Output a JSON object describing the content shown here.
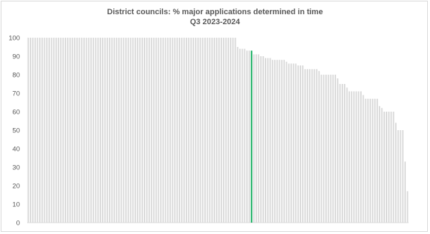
{
  "chart_data": {
    "type": "bar",
    "title": "District councils: % major applications determined in time",
    "subtitle": "Q3 2023-2024",
    "xlabel": "",
    "ylabel": "",
    "ylim": [
      0,
      100
    ],
    "yticks": [
      "0",
      "10",
      "20",
      "30",
      "40",
      "50",
      "60",
      "70",
      "80",
      "90",
      "100"
    ],
    "grid": false,
    "legend": "none",
    "bar_color": "#d9d9d9",
    "highlight_color": "#00a651",
    "highlight_index": 96,
    "values": [
      100,
      100,
      100,
      100,
      100,
      100,
      100,
      100,
      100,
      100,
      100,
      100,
      100,
      100,
      100,
      100,
      100,
      100,
      100,
      100,
      100,
      100,
      100,
      100,
      100,
      100,
      100,
      100,
      100,
      100,
      100,
      100,
      100,
      100,
      100,
      100,
      100,
      100,
      100,
      100,
      100,
      100,
      100,
      100,
      100,
      100,
      100,
      100,
      100,
      100,
      100,
      100,
      100,
      100,
      100,
      100,
      100,
      100,
      100,
      100,
      100,
      100,
      100,
      100,
      100,
      100,
      100,
      100,
      100,
      100,
      100,
      100,
      100,
      100,
      100,
      100,
      100,
      100,
      100,
      100,
      100,
      100,
      100,
      100,
      100,
      100,
      100,
      100,
      100,
      100,
      95,
      94,
      94,
      94,
      93,
      93,
      93,
      91,
      91,
      91,
      90,
      90,
      89,
      89,
      89,
      88,
      88,
      88,
      88,
      88,
      88,
      87,
      86,
      86,
      86,
      86,
      85,
      85,
      85,
      83,
      83,
      83,
      83,
      83,
      83,
      82,
      80,
      80,
      80,
      80,
      80,
      80,
      80,
      78,
      75,
      75,
      75,
      73,
      71,
      71,
      71,
      71,
      71,
      71,
      69,
      67,
      67,
      67,
      67,
      67,
      67,
      63,
      62,
      60,
      60,
      60,
      60,
      60,
      54,
      50,
      50,
      50,
      33,
      17
    ]
  }
}
